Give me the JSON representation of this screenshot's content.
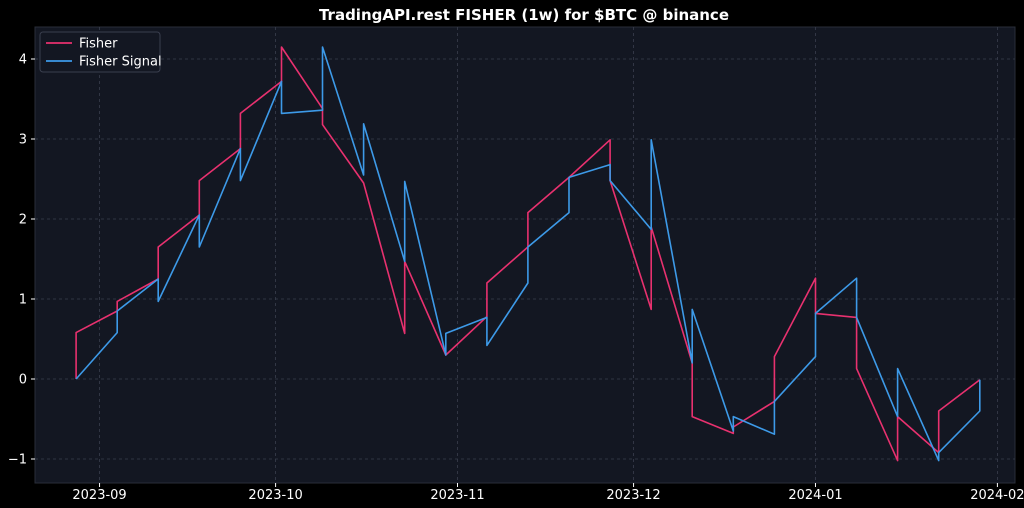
{
  "chart_data": {
    "type": "line",
    "title": "TradingAPI.rest FISHER (1w) for $BTC @ binance",
    "xlabel": "",
    "ylabel": "",
    "xlim": [
      "2023-08-21",
      "2024-02-04"
    ],
    "ylim": [
      -1.3,
      4.4
    ],
    "x_ticks": [
      "2023-09",
      "2023-10",
      "2023-11",
      "2023-12",
      "2024-01",
      "2024-02"
    ],
    "y_ticks": [
      -1,
      0,
      1,
      2,
      3,
      4
    ],
    "y_tick_labels": [
      "−1",
      "0",
      "1",
      "2",
      "3",
      "4"
    ],
    "grid": true,
    "legend": "top-left",
    "background": "#131722",
    "series": [
      {
        "name": "Fisher",
        "color": "#e8316f",
        "points": [
          [
            "2023-08-28",
            0.0
          ],
          [
            "2023-08-28",
            0.58
          ],
          [
            "2023-09-04",
            0.85
          ],
          [
            "2023-09-04",
            0.97
          ],
          [
            "2023-09-11",
            1.25
          ],
          [
            "2023-09-11",
            1.65
          ],
          [
            "2023-09-18",
            2.05
          ],
          [
            "2023-09-18",
            2.48
          ],
          [
            "2023-09-25",
            2.88
          ],
          [
            "2023-09-25",
            3.32
          ],
          [
            "2023-10-02",
            3.72
          ],
          [
            "2023-10-02",
            4.15
          ],
          [
            "2023-10-09",
            3.38
          ],
          [
            "2023-10-09",
            3.18
          ],
          [
            "2023-10-16",
            2.45
          ],
          [
            "2023-10-23",
            0.57
          ],
          [
            "2023-10-23",
            1.47
          ],
          [
            "2023-10-30",
            0.3
          ],
          [
            "2023-11-06",
            0.78
          ],
          [
            "2023-11-06",
            1.2
          ],
          [
            "2023-11-13",
            1.65
          ],
          [
            "2023-11-13",
            2.08
          ],
          [
            "2023-11-20",
            2.52
          ],
          [
            "2023-11-27",
            2.99
          ],
          [
            "2023-11-27",
            2.48
          ],
          [
            "2023-12-04",
            0.87
          ],
          [
            "2023-12-04",
            1.9
          ],
          [
            "2023-12-11",
            0.2
          ],
          [
            "2023-12-11",
            -0.47
          ],
          [
            "2023-12-18",
            -0.68
          ],
          [
            "2023-12-18",
            -0.6
          ],
          [
            "2023-12-25",
            -0.28
          ],
          [
            "2023-12-25",
            0.28
          ],
          [
            "2024-01-01",
            1.26
          ],
          [
            "2024-01-01",
            0.82
          ],
          [
            "2024-01-08",
            0.77
          ],
          [
            "2024-01-08",
            0.13
          ],
          [
            "2024-01-15",
            -1.02
          ],
          [
            "2024-01-15",
            -0.47
          ],
          [
            "2024-01-22",
            -0.92
          ],
          [
            "2024-01-22",
            -0.4
          ],
          [
            "2024-01-29",
            -0.01
          ]
        ]
      },
      {
        "name": "Fisher Signal",
        "color": "#3d9ae8",
        "points": [
          [
            "2023-08-28",
            0.0
          ],
          [
            "2023-09-04",
            0.58
          ],
          [
            "2023-09-04",
            0.85
          ],
          [
            "2023-09-11",
            1.25
          ],
          [
            "2023-09-11",
            0.97
          ],
          [
            "2023-09-18",
            2.05
          ],
          [
            "2023-09-18",
            1.65
          ],
          [
            "2023-09-25",
            2.88
          ],
          [
            "2023-09-25",
            2.48
          ],
          [
            "2023-10-02",
            3.72
          ],
          [
            "2023-10-02",
            3.32
          ],
          [
            "2023-10-09",
            3.36
          ],
          [
            "2023-10-09",
            4.15
          ],
          [
            "2023-10-16",
            2.55
          ],
          [
            "2023-10-16",
            3.19
          ],
          [
            "2023-10-23",
            1.47
          ],
          [
            "2023-10-23",
            2.47
          ],
          [
            "2023-10-30",
            0.3
          ],
          [
            "2023-10-30",
            0.57
          ],
          [
            "2023-11-06",
            0.77
          ],
          [
            "2023-11-06",
            0.42
          ],
          [
            "2023-11-13",
            1.2
          ],
          [
            "2023-11-13",
            1.65
          ],
          [
            "2023-11-20",
            2.08
          ],
          [
            "2023-11-20",
            2.52
          ],
          [
            "2023-11-27",
            2.68
          ],
          [
            "2023-11-27",
            2.48
          ],
          [
            "2023-12-04",
            1.87
          ],
          [
            "2023-12-04",
            2.99
          ],
          [
            "2023-12-11",
            0.2
          ],
          [
            "2023-12-11",
            0.87
          ],
          [
            "2023-12-18",
            -0.65
          ],
          [
            "2023-12-18",
            -0.47
          ],
          [
            "2023-12-25",
            -0.69
          ],
          [
            "2023-12-25",
            -0.28
          ],
          [
            "2024-01-01",
            0.28
          ],
          [
            "2024-01-01",
            0.82
          ],
          [
            "2024-01-08",
            1.26
          ],
          [
            "2024-01-08",
            0.77
          ],
          [
            "2024-01-15",
            -0.47
          ],
          [
            "2024-01-15",
            0.13
          ],
          [
            "2024-01-22",
            -1.02
          ],
          [
            "2024-01-22",
            -0.92
          ],
          [
            "2024-01-29",
            -0.4
          ],
          [
            "2024-01-29",
            -0.01
          ]
        ]
      }
    ]
  }
}
